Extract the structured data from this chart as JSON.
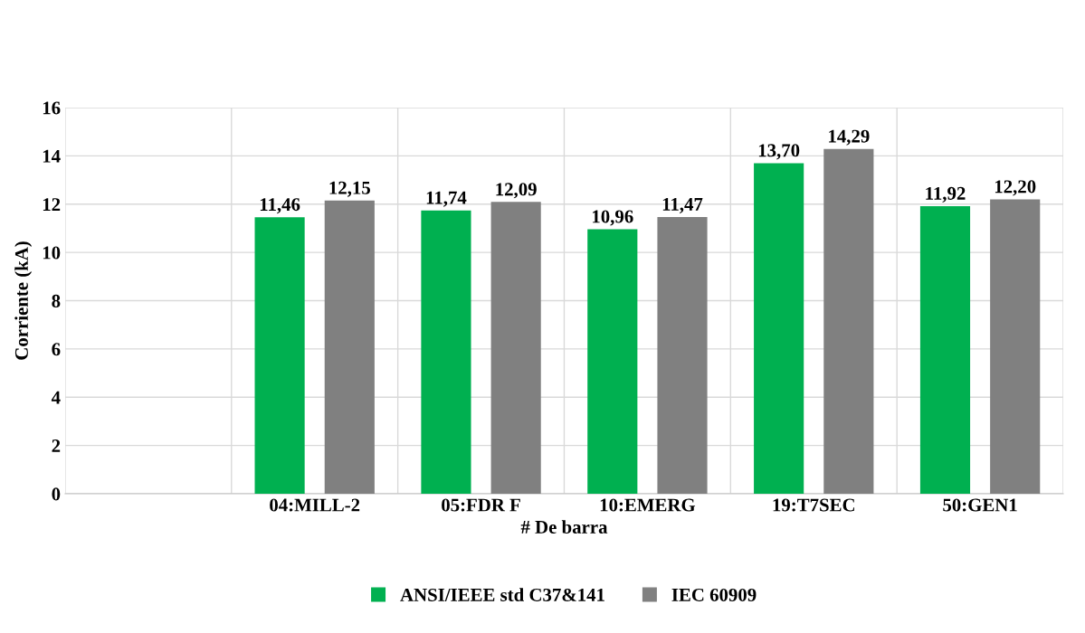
{
  "chart_data": {
    "type": "bar",
    "xlabel": "# De barra",
    "ylabel": "Corriente (kA)",
    "categories": [
      null,
      "04:MILL-2",
      "05:FDR F",
      "10:EMERG",
      "19:T7SEC",
      "50:GEN1"
    ],
    "series": [
      {
        "name": "ANSI/IEEE std C37&141",
        "color": "#00b050",
        "values": [
          null,
          11.46,
          11.74,
          10.96,
          13.7,
          11.92
        ],
        "value_labels": [
          null,
          "11,46",
          "11,74",
          "10,96",
          "13,70",
          "11,92"
        ]
      },
      {
        "name": "IEC 60909",
        "color": "#808080",
        "values": [
          null,
          12.15,
          12.09,
          11.47,
          14.29,
          12.2
        ],
        "value_labels": [
          null,
          "12,15",
          "12,09",
          "11,47",
          "14,29",
          "12,20"
        ]
      }
    ],
    "ylim": [
      0,
      16
    ],
    "yticks": [
      0,
      2,
      4,
      6,
      8,
      10,
      12,
      14,
      16
    ],
    "grid": true,
    "legend": "bottom"
  }
}
